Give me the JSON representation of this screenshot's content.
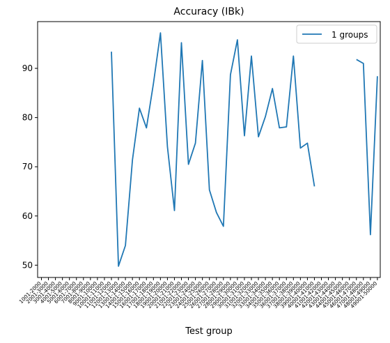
{
  "chart_data": {
    "type": "line",
    "title": "Accuracy (IBk)",
    "xlabel": "Test group",
    "ylabel": "",
    "categories": [
      "1001-2000",
      "2001-3000",
      "3001-4000",
      "4001-5000",
      "5001-6000",
      "6001-7000",
      "7001-8000",
      "8001-9000",
      "9001-10000",
      "10001-11000",
      "11001-12000",
      "12001-13000",
      "13001-14000",
      "14001-15000",
      "15001-16000",
      "16001-17000",
      "17001-18000",
      "18001-19000",
      "19001-20000",
      "20001-21000",
      "21001-22000",
      "22001-23000",
      "23001-24000",
      "24001-25000",
      "25001-26000",
      "26001-27000",
      "27001-28000",
      "28001-29000",
      "29001-30000",
      "30001-31000",
      "31001-32000",
      "32001-33000",
      "33001-34000",
      "34001-35000",
      "35001-36000",
      "36001-37000",
      "37001-38000",
      "38001-39000",
      "39001-40000",
      "40001-41000",
      "41001-42000",
      "42001-43000",
      "43001-44000",
      "44001-45000",
      "45001-46000",
      "46001-47000",
      "47001-48000",
      "48001-49000",
      "49001-50000"
    ],
    "series": [
      {
        "name": "1 groups",
        "color": "#1f77b4",
        "values": [
          null,
          null,
          null,
          null,
          null,
          null,
          null,
          null,
          null,
          null,
          93.4,
          49.8,
          54.0,
          71.4,
          81.9,
          77.9,
          86.9,
          97.2,
          74.1,
          61.1,
          95.2,
          70.5,
          74.8,
          91.6,
          65.3,
          60.7,
          57.9,
          88.7,
          95.8,
          76.3,
          92.5,
          76.1,
          80.2,
          85.9,
          77.9,
          78.1,
          92.5,
          73.8,
          74.8,
          66.0,
          null,
          null,
          null,
          null,
          null,
          91.8,
          91.0,
          56.2,
          88.4
        ]
      }
    ],
    "yticks": [
      50,
      60,
      70,
      80,
      90
    ],
    "ylim": [
      47.5,
      99.5
    ],
    "grid": false,
    "legend_position": "upper-right"
  }
}
